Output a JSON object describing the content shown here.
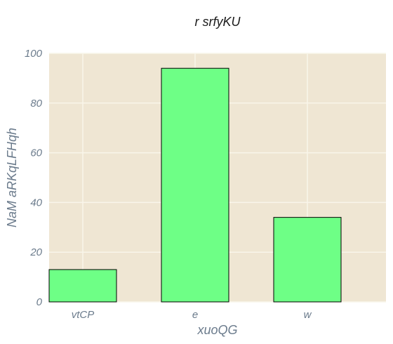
{
  "chart_data": {
    "type": "bar",
    "title": "r srfyKU",
    "xlabel": "xuoQG",
    "ylabel": "NaM aRKqLFHqh",
    "categories": [
      "vtCP",
      "e",
      "w"
    ],
    "values": [
      13,
      94,
      34
    ],
    "ylim": [
      0,
      100
    ],
    "yticks": [
      0,
      20,
      40,
      60,
      80,
      100
    ],
    "grid": true,
    "legend": "none"
  },
  "colors": {
    "plot_background": "#efe6d3",
    "grid": "#f9f5ea",
    "bar_fill": "#6eff86",
    "bar_edge": "#000000",
    "text": "#6b7b8c"
  }
}
